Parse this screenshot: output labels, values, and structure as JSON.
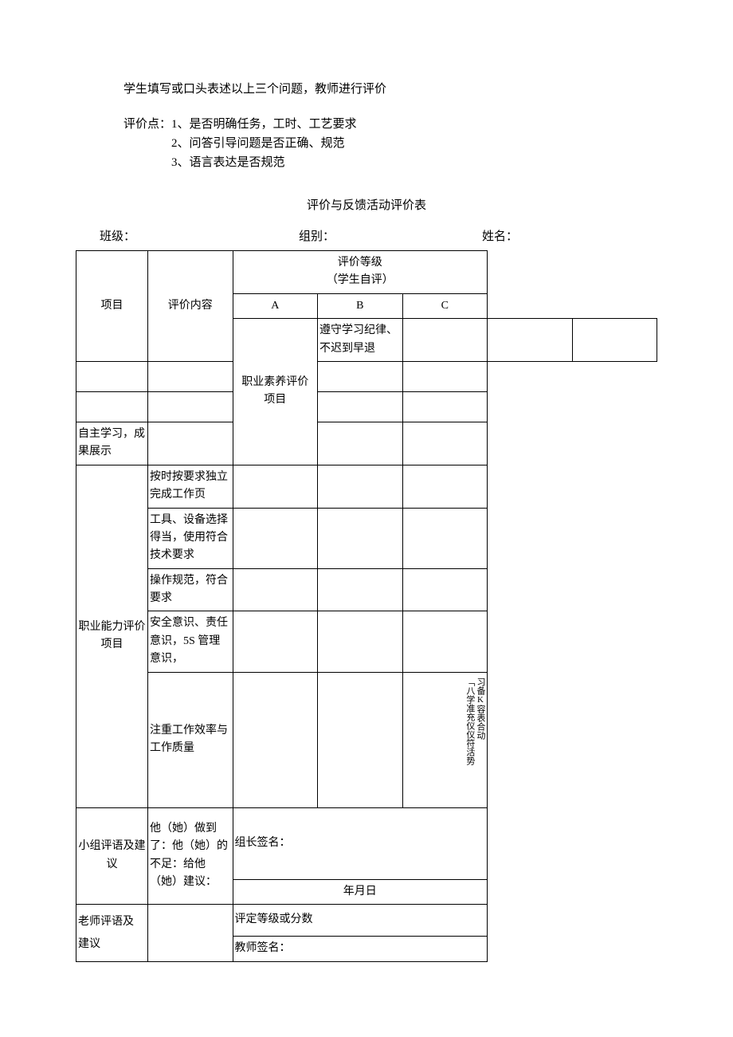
{
  "intro": "学生填写或口头表述以上三个问题，教师进行评价",
  "points_label": "评价点：",
  "points": [
    "1、是否明确任务，工时、工艺要求",
    "2、问答引导问题是否正确、规范",
    "3、语言表达是否规范"
  ],
  "table_title": "评价与反馈活动评价表",
  "header": {
    "class_label": "班级：",
    "group_label": "组别：",
    "name_label": "姓名："
  },
  "columns": {
    "project": "项目",
    "content": "评价内容",
    "grade_header": "评价等级",
    "grade_sub": "（学生自评）",
    "a": "A",
    "b": "B",
    "c": "C"
  },
  "section1": {
    "title_line1": "职业素养评价",
    "title_line2": "项目",
    "rows": [
      "遵守学习纪律、不迟到早退",
      "",
      "",
      "自主学习，成果展示"
    ]
  },
  "section2": {
    "title_line1": "职业能力评价",
    "title_line2": "项目",
    "rows": [
      "按时按要求独立完成工作页",
      "工具、设备选择得当，使用符合技术要求",
      "操作规范，符合要求",
      "安全意识、责任意识，5S 管理意识，",
      "注重工作效率与工作质量"
    ],
    "vertical_col1": "「八学准充仪仪符活势",
    "vertical_col2": "习备K容表合动"
  },
  "group_comment": {
    "title_line1": "小组评语及建",
    "title_line2": "议",
    "content": "他（她）做到了：他（她）的不足：给他（她）建议：",
    "sig": "组长签名：",
    "date": "年月日"
  },
  "teacher_comment": {
    "title_line1": "老师评语及",
    "title_line2": "建议",
    "grade_label": "评定等级或分数",
    "sig": "教师签名："
  },
  "colors": {
    "text": "#000000",
    "background": "#ffffff",
    "border": "#000000"
  }
}
